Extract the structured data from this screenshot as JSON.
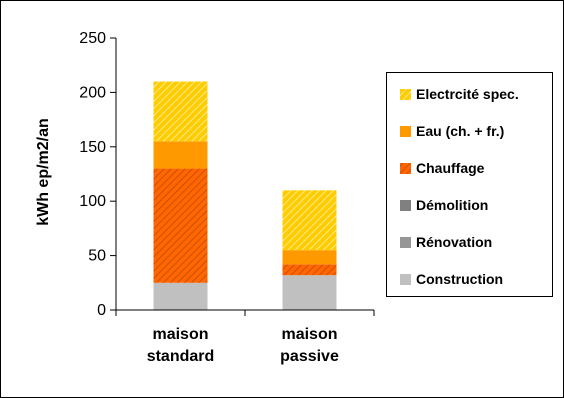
{
  "chart_data": {
    "type": "bar",
    "stacked": true,
    "categories": [
      [
        "maison",
        "standard"
      ],
      [
        "maison",
        "passive"
      ]
    ],
    "ylabel": "kWh ep/m2/an",
    "ylim": [
      0,
      250
    ],
    "yticks": [
      0,
      50,
      100,
      150,
      200,
      250
    ],
    "grid": false,
    "legend_position": "right",
    "series": [
      {
        "name": "Construction",
        "values": [
          25,
          32
        ],
        "color": "#c0c0c0",
        "pattern": "solid"
      },
      {
        "name": "Rénovation",
        "values": [
          0,
          0
        ],
        "color": "#969696",
        "pattern": "solid"
      },
      {
        "name": "Démolition",
        "values": [
          0,
          0
        ],
        "color": "#808080",
        "pattern": "solid"
      },
      {
        "name": "Chauffage",
        "values": [
          105,
          10
        ],
        "color": "#ff6600",
        "pattern": "hatch-dark"
      },
      {
        "name": "Eau (ch. + fr.)",
        "values": [
          25,
          13
        ],
        "color": "#ff9900",
        "pattern": "solid"
      },
      {
        "name": "Electrcité spec.",
        "values": [
          55,
          55
        ],
        "color": "#ffcc00",
        "pattern": "hatch-light"
      }
    ]
  }
}
